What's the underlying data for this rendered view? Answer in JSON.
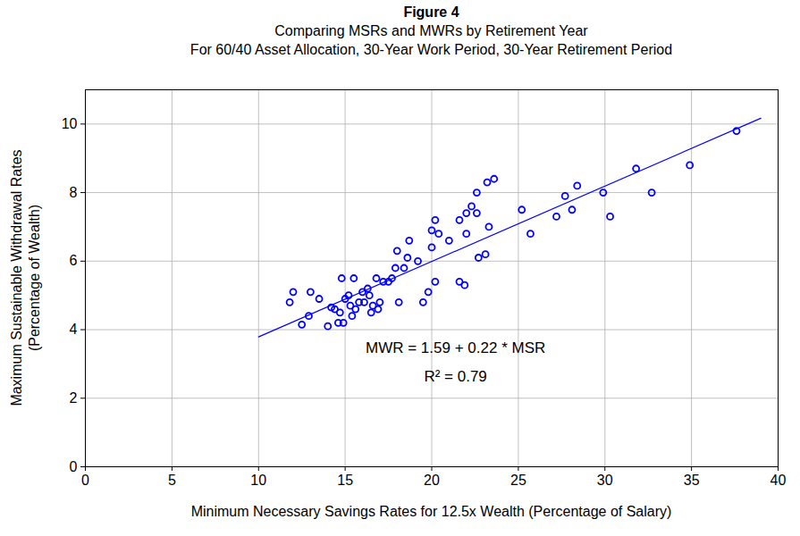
{
  "chart_data": {
    "type": "scatter",
    "title": "Figure 4",
    "subtitle": "Comparing MSRs and MWRs by Retirement Year\nFor 60/40 Asset Allocation, 30-Year Work Period, 30-Year Retirement Period",
    "xlabel": "Minimum Necessary Savings Rates for 12.5x Wealth (Percentage of Salary)",
    "ylabel": "Maximum Sustainable Withdrawal Rates\n(Percentage of Wealth)",
    "xlim": [
      0,
      40
    ],
    "ylim": [
      0,
      11
    ],
    "xticks": [
      0,
      5,
      10,
      15,
      20,
      25,
      30,
      35,
      40
    ],
    "yticks": [
      0,
      2,
      4,
      6,
      8,
      10
    ],
    "grid": true,
    "color": "#0000ff",
    "marker": "circle",
    "x": [
      11.8,
      12.0,
      12.5,
      12.9,
      13.0,
      13.5,
      14.0,
      14.2,
      14.4,
      14.6,
      14.7,
      14.8,
      14.9,
      15.0,
      15.2,
      15.3,
      15.4,
      15.5,
      15.6,
      15.8,
      16.0,
      16.1,
      16.3,
      16.4,
      16.5,
      16.6,
      16.8,
      16.9,
      17.0,
      17.2,
      17.5,
      17.7,
      17.9,
      18.0,
      18.1,
      18.4,
      18.6,
      18.7,
      19.2,
      19.5,
      19.8,
      20.0,
      20.0,
      20.2,
      20.2,
      20.4,
      21.0,
      21.6,
      21.6,
      21.9,
      22.0,
      22.0,
      22.3,
      22.6,
      22.6,
      22.7,
      23.1,
      23.2,
      23.3,
      23.6,
      25.2,
      25.7,
      27.2,
      27.7,
      28.1,
      28.4,
      29.9,
      30.3,
      31.8,
      32.7,
      34.9,
      37.6
    ],
    "values": [
      4.8,
      5.1,
      4.15,
      4.4,
      5.1,
      4.9,
      4.1,
      4.65,
      4.6,
      4.2,
      4.5,
      5.5,
      4.2,
      4.9,
      5.0,
      4.7,
      4.4,
      5.5,
      4.6,
      4.8,
      5.1,
      4.8,
      5.2,
      5.0,
      4.5,
      4.7,
      5.5,
      4.6,
      4.8,
      5.4,
      5.4,
      5.5,
      5.8,
      6.3,
      4.8,
      5.8,
      6.1,
      6.6,
      6.0,
      4.8,
      5.1,
      6.4,
      6.9,
      7.2,
      5.4,
      6.8,
      6.6,
      5.4,
      7.2,
      5.3,
      7.4,
      6.8,
      7.6,
      7.4,
      8.0,
      6.1,
      6.2,
      8.3,
      7.0,
      8.4,
      7.5,
      6.8,
      7.3,
      7.9,
      7.5,
      8.2,
      8.0,
      7.3,
      8.7,
      8.0,
      8.8,
      9.8
    ],
    "fit_line": {
      "x": [
        10,
        39
      ],
      "values": [
        3.79,
        10.17
      ],
      "color": "#0000ff",
      "line_style": "solid"
    },
    "annotations": [
      "MWR = 1.59 + 0.22 * MSR",
      "R² = 0.79"
    ]
  }
}
